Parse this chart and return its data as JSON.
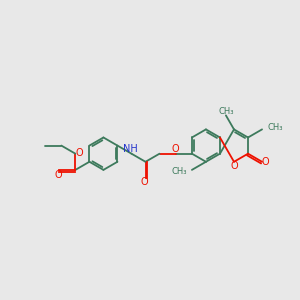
{
  "background_color": "#e8e8e8",
  "bond_color": "#3d7a5c",
  "oxygen_color": "#ee1100",
  "nitrogen_color": "#2233cc",
  "figsize": [
    3.0,
    3.0
  ],
  "dpi": 100,
  "xlim": [
    0,
    10
  ],
  "ylim": [
    0,
    10
  ]
}
